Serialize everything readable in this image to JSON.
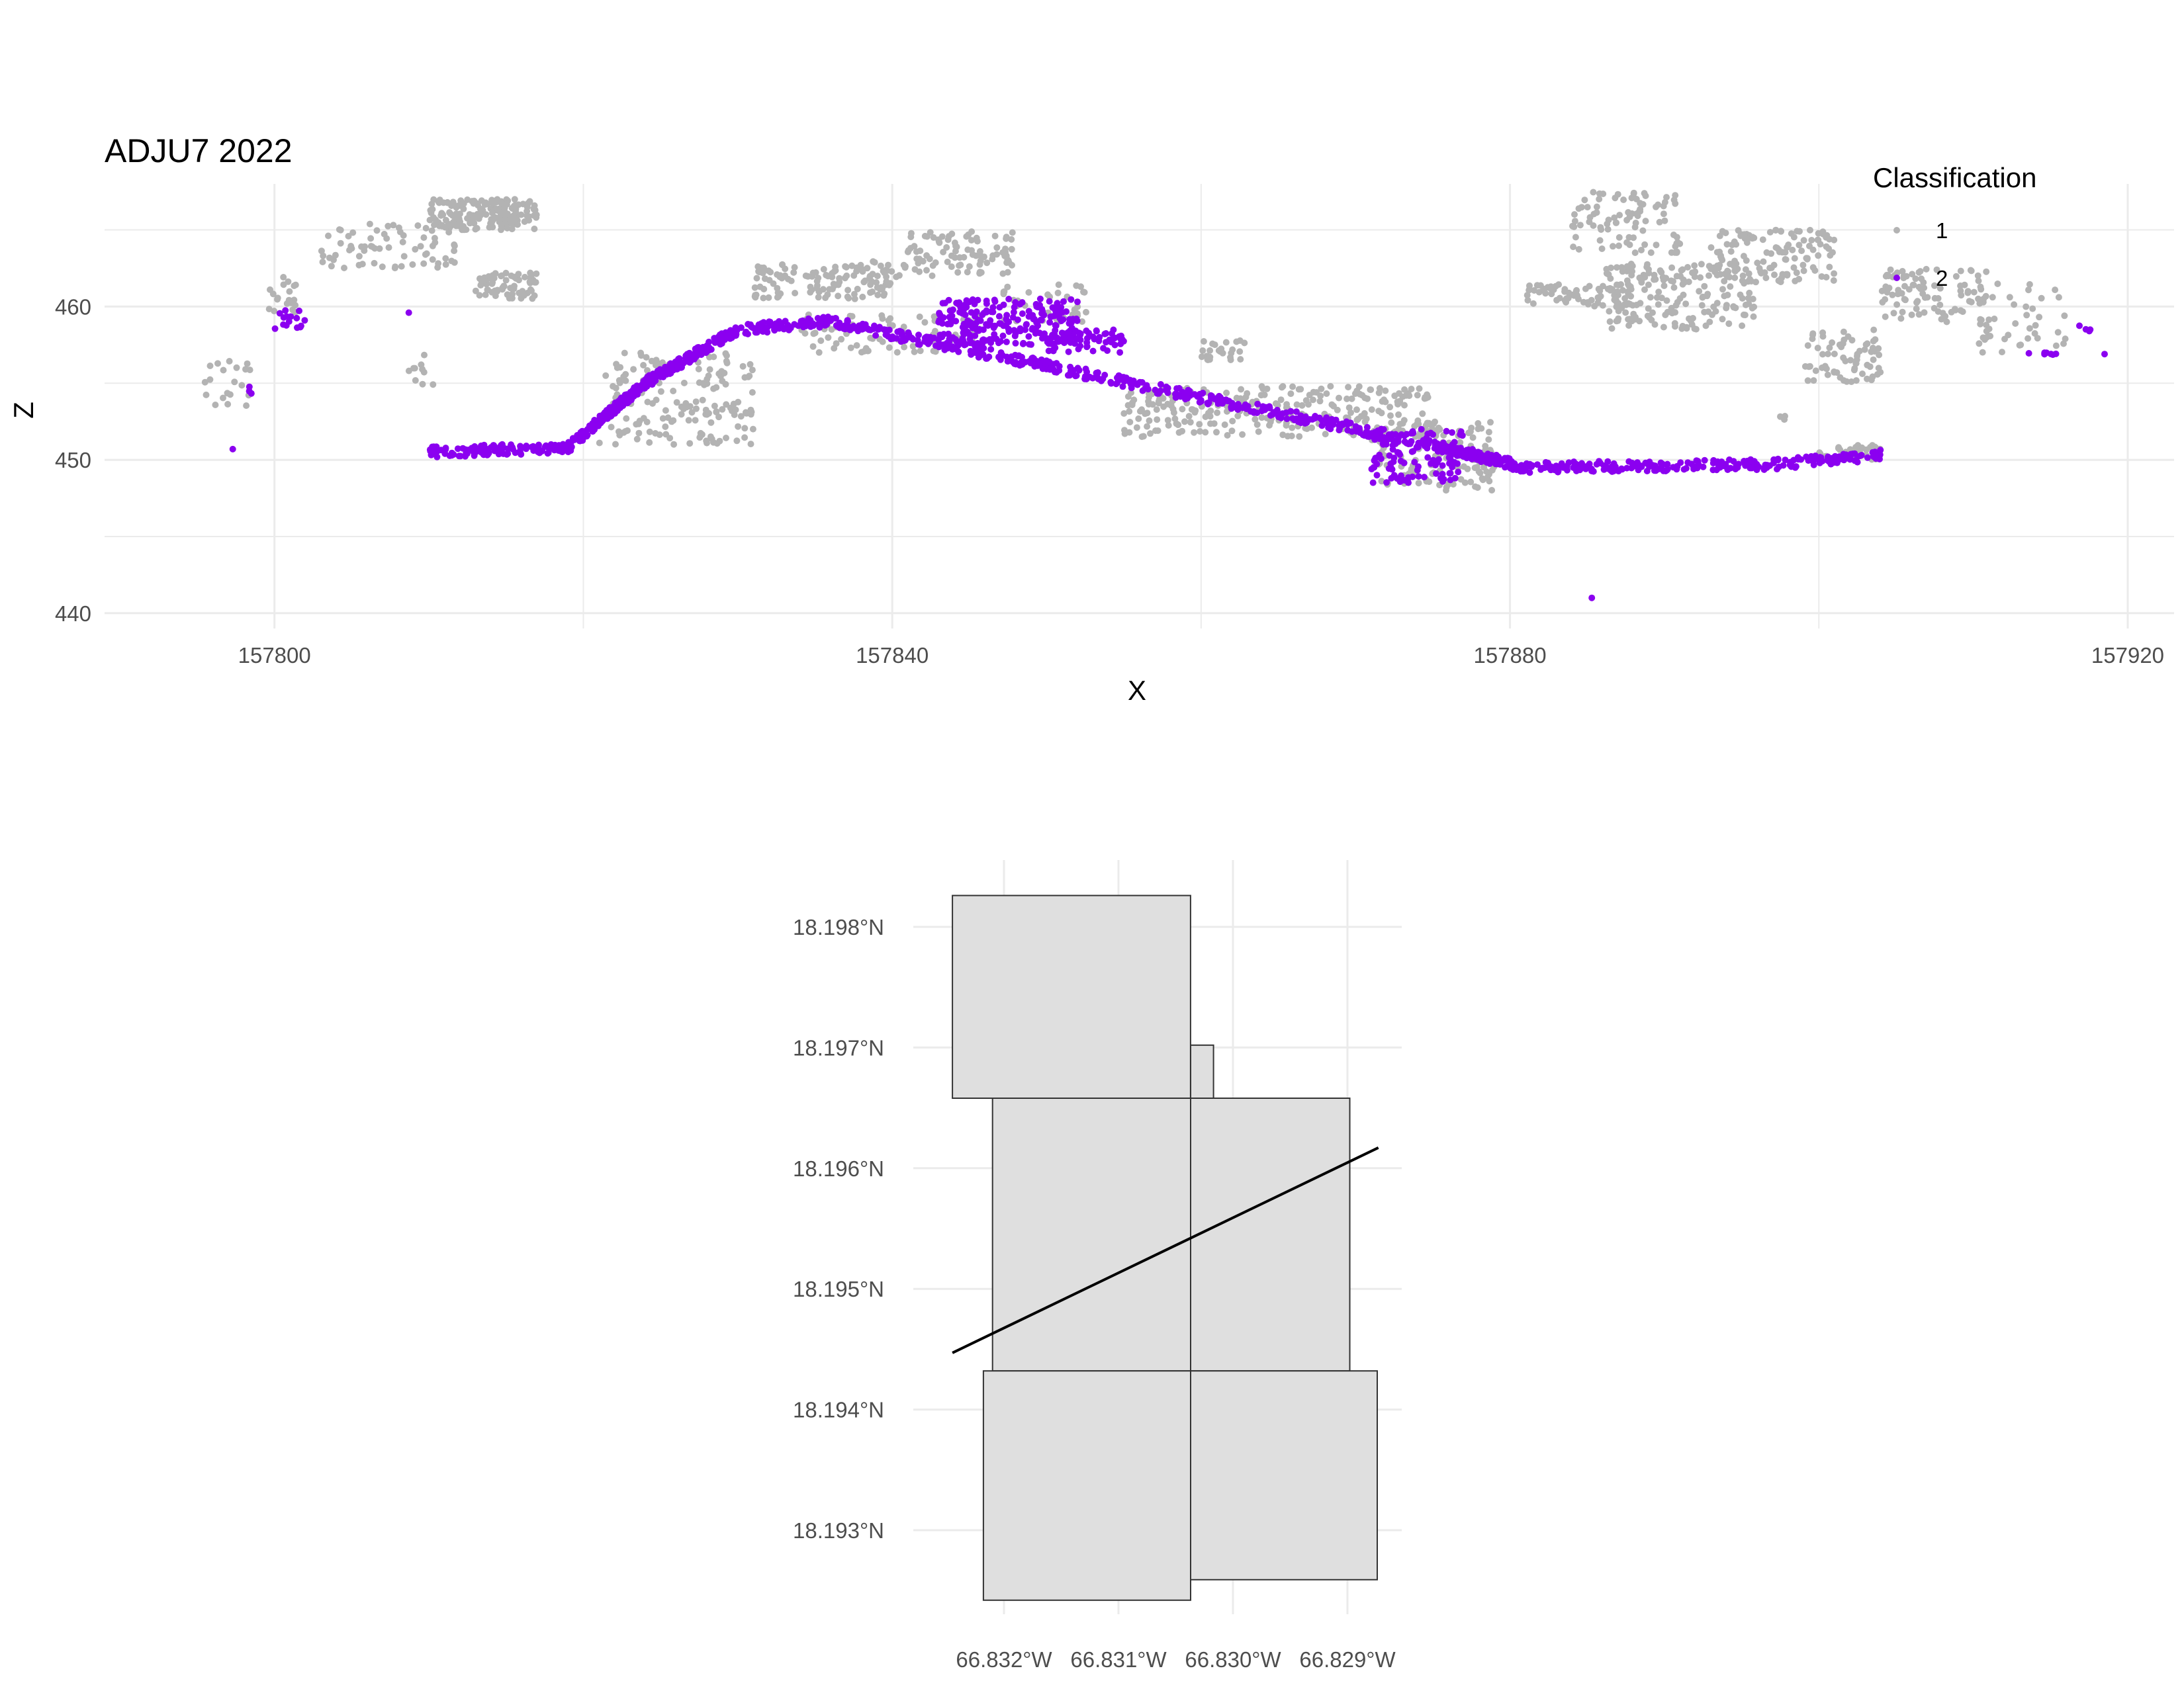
{
  "chart_data": [
    {
      "type": "scatter",
      "title": "ADJU7 2022",
      "xlabel": "X",
      "ylabel": "Z",
      "xlim": [
        157789,
        157923
      ],
      "ylim": [
        439,
        468
      ],
      "x_ticks": [
        "157800",
        "157840",
        "157880",
        "157920"
      ],
      "y_ticks": [
        "440",
        "450",
        "460"
      ],
      "grid": true,
      "legend": {
        "title": "Classification",
        "placement": "top-right",
        "entries": [
          {
            "label": "1",
            "color": "#B3B3B3"
          },
          {
            "label": "2",
            "color": "#8B00F0"
          }
        ]
      },
      "series": [
        {
          "name": "1",
          "color": "#B3B3B3",
          "clusters": [
            {
              "x": [
                157810,
                157817
              ],
              "z": [
                465,
                467
              ],
              "n": 180
            },
            {
              "x": [
                157803,
                157812
              ],
              "z": [
                462.5,
                465.5
              ],
              "n": 70
            },
            {
              "x": [
                157813,
                157817
              ],
              "z": [
                460.5,
                462.2
              ],
              "n": 70
            },
            {
              "x": [
                157799.5,
                157801.5
              ],
              "z": [
                459.5,
                462
              ],
              "n": 20
            },
            {
              "x": [
                157795.5,
                157798.5
              ],
              "z": [
                453.5,
                456.8
              ],
              "n": 20
            },
            {
              "x": [
                157808.5,
                157810.5
              ],
              "z": [
                454.5,
                457
              ],
              "n": 10
            },
            {
              "x": [
                157831,
                157840
              ],
              "z": [
                460.5,
                462.8
              ],
              "n": 110
            },
            {
              "x": [
                157841,
                157848
              ],
              "z": [
                462,
                465
              ],
              "n": 90
            },
            {
              "x": [
                157838,
                157841
              ],
              "z": [
                461.5,
                463
              ],
              "n": 20
            },
            {
              "x": [
                157847,
                157853
              ],
              "z": [
                459,
                461.5
              ],
              "n": 35
            },
            {
              "x": [
                157860,
                157863
              ],
              "z": [
                456.5,
                457.8
              ],
              "n": 25
            },
            {
              "x": [
                157821,
                157831
              ],
              "z": [
                451,
                457
              ],
              "n": 160
            },
            {
              "x": [
                157834,
                157846
              ],
              "z": [
                457,
                459.5
              ],
              "n": 80
            },
            {
              "x": [
                157855,
                157875
              ],
              "z": [
                451.5,
                454.8
              ],
              "n": 260
            },
            {
              "x": [
                157871,
                157879
              ],
              "z": [
                448,
                452.5
              ],
              "n": 130
            },
            {
              "x": [
                157881,
                157888
              ],
              "z": [
                460,
                461.5
              ],
              "n": 70
            },
            {
              "x": [
                157884,
                157891
              ],
              "z": [
                463.5,
                467.5
              ],
              "n": 90
            },
            {
              "x": [
                157886,
                157896
              ],
              "z": [
                458.5,
                462.8
              ],
              "n": 180
            },
            {
              "x": [
                157893,
                157901
              ],
              "z": [
                461.5,
                465
              ],
              "n": 130
            },
            {
              "x": [
                157899,
                157904
              ],
              "z": [
                455,
                458.5
              ],
              "n": 70
            },
            {
              "x": [
                157904,
                157911
              ],
              "z": [
                459,
                462.5
              ],
              "n": 90
            },
            {
              "x": [
                157910,
                157916
              ],
              "z": [
                457,
                461.5
              ],
              "n": 45
            },
            {
              "x": [
                157900,
                157904
              ],
              "z": [
                450,
                451
              ],
              "n": 40
            },
            {
              "x": [
                157897.5,
                157898.5
              ],
              "z": [
                452.5,
                453
              ],
              "n": 3
            }
          ]
        },
        {
          "name": "2",
          "color": "#8B00F0",
          "line_segments": [
            {
              "x": [
                157810,
                157819
              ],
              "z": [
                450.5,
                450.8
              ],
              "n": 110
            },
            {
              "x": [
                157819,
                157824
              ],
              "z": [
                450.8,
                455
              ],
              "n": 140
            },
            {
              "x": [
                157824,
                157830
              ],
              "z": [
                455,
                458.5
              ],
              "n": 170
            },
            {
              "x": [
                157830,
                157836
              ],
              "z": [
                458.5,
                459
              ],
              "n": 90
            },
            {
              "x": [
                157836,
                157875
              ],
              "z": [
                459,
                451
              ],
              "n": 420
            },
            {
              "x": [
                157875,
                157881
              ],
              "z": [
                451,
                449.5
              ],
              "n": 130
            },
            {
              "x": [
                157881,
                157897
              ],
              "z": [
                449.5,
                449.7
              ],
              "n": 170
            },
            {
              "x": [
                157897,
                157904
              ],
              "z": [
                449.7,
                450.3
              ],
              "n": 90
            }
          ],
          "clusters": [
            {
              "x": [
                157843,
                157852
              ],
              "z": [
                457.5,
                460.5
              ],
              "n": 230
            },
            {
              "x": [
                157850,
                157855
              ],
              "z": [
                457,
                458.5
              ],
              "n": 60
            },
            {
              "x": [
                157871,
                157877
              ],
              "z": [
                448.5,
                452
              ],
              "n": 120
            },
            {
              "x": [
                157800,
                157802
              ],
              "z": [
                458.5,
                459.8
              ],
              "n": 15
            },
            {
              "x": [
                157798,
                157798.7
              ],
              "z": [
                454.3,
                454.8
              ],
              "n": 3
            },
            {
              "x": [
                157913.5,
                157915.5
              ],
              "z": [
                456.8,
                457
              ],
              "n": 8
            },
            {
              "x": [
                157916.8,
                157917.6
              ],
              "z": [
                458.3,
                458.8
              ],
              "n": 4
            }
          ],
          "singles": [
            {
              "x": 157797.3,
              "z": 450.7
            },
            {
              "x": 157885.3,
              "z": 441
            },
            {
              "x": 157918.5,
              "z": 456.9
            },
            {
              "x": 157808.7,
              "z": 459.6
            }
          ]
        }
      ]
    },
    {
      "type": "map",
      "lon_ticks": [
        "66.832°W",
        "66.831°W",
        "66.830°W",
        "66.829°W"
      ],
      "lat_ticks": [
        "18.193°N",
        "18.194°N",
        "18.195°N",
        "18.196°N",
        "18.197°N",
        "18.198°N"
      ],
      "lon_values": [
        -66.832,
        -66.831,
        -66.83,
        -66.829
      ],
      "lat_values": [
        18.193,
        18.194,
        18.195,
        18.196,
        18.197,
        18.198
      ],
      "fill_color": "#DFDFDF",
      "tiles": [
        {
          "lon": [
            -66.83245,
            -66.83037
          ],
          "lat": [
            18.19658,
            18.19826
          ]
        },
        {
          "lon": [
            -66.83037,
            -66.83017
          ],
          "lat": [
            18.19658,
            18.19702
          ]
        },
        {
          "lon": [
            -66.8321,
            -66.83037
          ],
          "lat": [
            18.19432,
            18.19658
          ]
        },
        {
          "lon": [
            -66.83037,
            -66.82898
          ],
          "lat": [
            18.19432,
            18.19658
          ]
        },
        {
          "lon": [
            -66.83218,
            -66.83037
          ],
          "lat": [
            18.19242,
            18.19432
          ]
        },
        {
          "lon": [
            -66.83037,
            -66.82874
          ],
          "lat": [
            18.19259,
            18.19432
          ]
        }
      ],
      "transect": {
        "lon": [
          -66.83245,
          -66.82873
        ],
        "lat": [
          18.19447,
          18.19617
        ]
      }
    }
  ]
}
